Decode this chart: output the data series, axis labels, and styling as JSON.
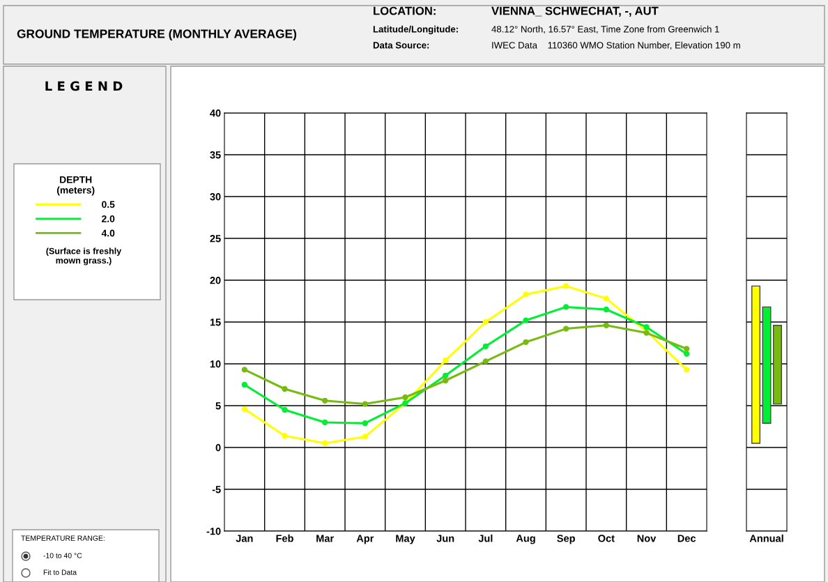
{
  "chart_data": [
    {
      "type": "line",
      "title": "GROUND TEMPERATURE (MONTHLY AVERAGE)",
      "legend_title": "DEPTH\n(meters)",
      "categories": [
        "Jan",
        "Feb",
        "Mar",
        "Apr",
        "May",
        "Jun",
        "Jul",
        "Aug",
        "Sep",
        "Oct",
        "Nov",
        "Dec"
      ],
      "series": [
        {
          "name": "0.5",
          "color": "#ffff00",
          "values": [
            4.6,
            1.4,
            0.5,
            1.3,
            5.3,
            10.4,
            15.0,
            18.3,
            19.3,
            17.8,
            13.9,
            9.3
          ]
        },
        {
          "name": "2.0",
          "color": "#00ee33",
          "values": [
            7.5,
            4.5,
            3.0,
            2.9,
            5.3,
            8.6,
            12.1,
            15.2,
            16.8,
            16.5,
            14.4,
            11.2
          ]
        },
        {
          "name": "4.0",
          "color": "#77bb11",
          "values": [
            9.3,
            7.0,
            5.6,
            5.2,
            6.0,
            8.0,
            10.3,
            12.6,
            14.2,
            14.6,
            13.7,
            11.8
          ]
        }
      ],
      "ylim": [
        -10,
        40
      ],
      "yticks": [
        -10,
        -5,
        0,
        5,
        10,
        15,
        20,
        25,
        30,
        35,
        40
      ],
      "grid": true,
      "marker": "circle",
      "line_style": "solid",
      "legend": "left",
      "annotations": [
        "LOCATION:",
        "VIENNA_ SCHWECHAT, -, AUT",
        "Latitude/Longitude:",
        "48.12° North, 16.57° East, Time Zone from Greenwich 1",
        "Data Source:",
        "IWEC Data    110360 WMO Station Number, Elevation 190 m",
        "L E G E N D",
        "(Surface is freshly\nmown grass.)",
        "TEMPERATURE RANGE:",
        "-10 to 40 °C",
        "Fit to Data"
      ]
    },
    {
      "type": "bar",
      "categories": [
        "Annual"
      ],
      "series": [
        {
          "color": "#ffff00",
          "values": [
            18.8
          ],
          "base": [
            0.5
          ]
        },
        {
          "color": "#00ee33",
          "values": [
            13.9
          ],
          "base": [
            2.9
          ]
        },
        {
          "color": "#77bb11",
          "values": [
            9.4
          ],
          "base": [
            5.2
          ]
        }
      ],
      "ylim": [
        -10,
        40
      ],
      "yticks": [
        -10,
        -5,
        0,
        5,
        10,
        15,
        20,
        25,
        30,
        35,
        40
      ],
      "grid": "y",
      "tick_labels": "x"
    }
  ]
}
